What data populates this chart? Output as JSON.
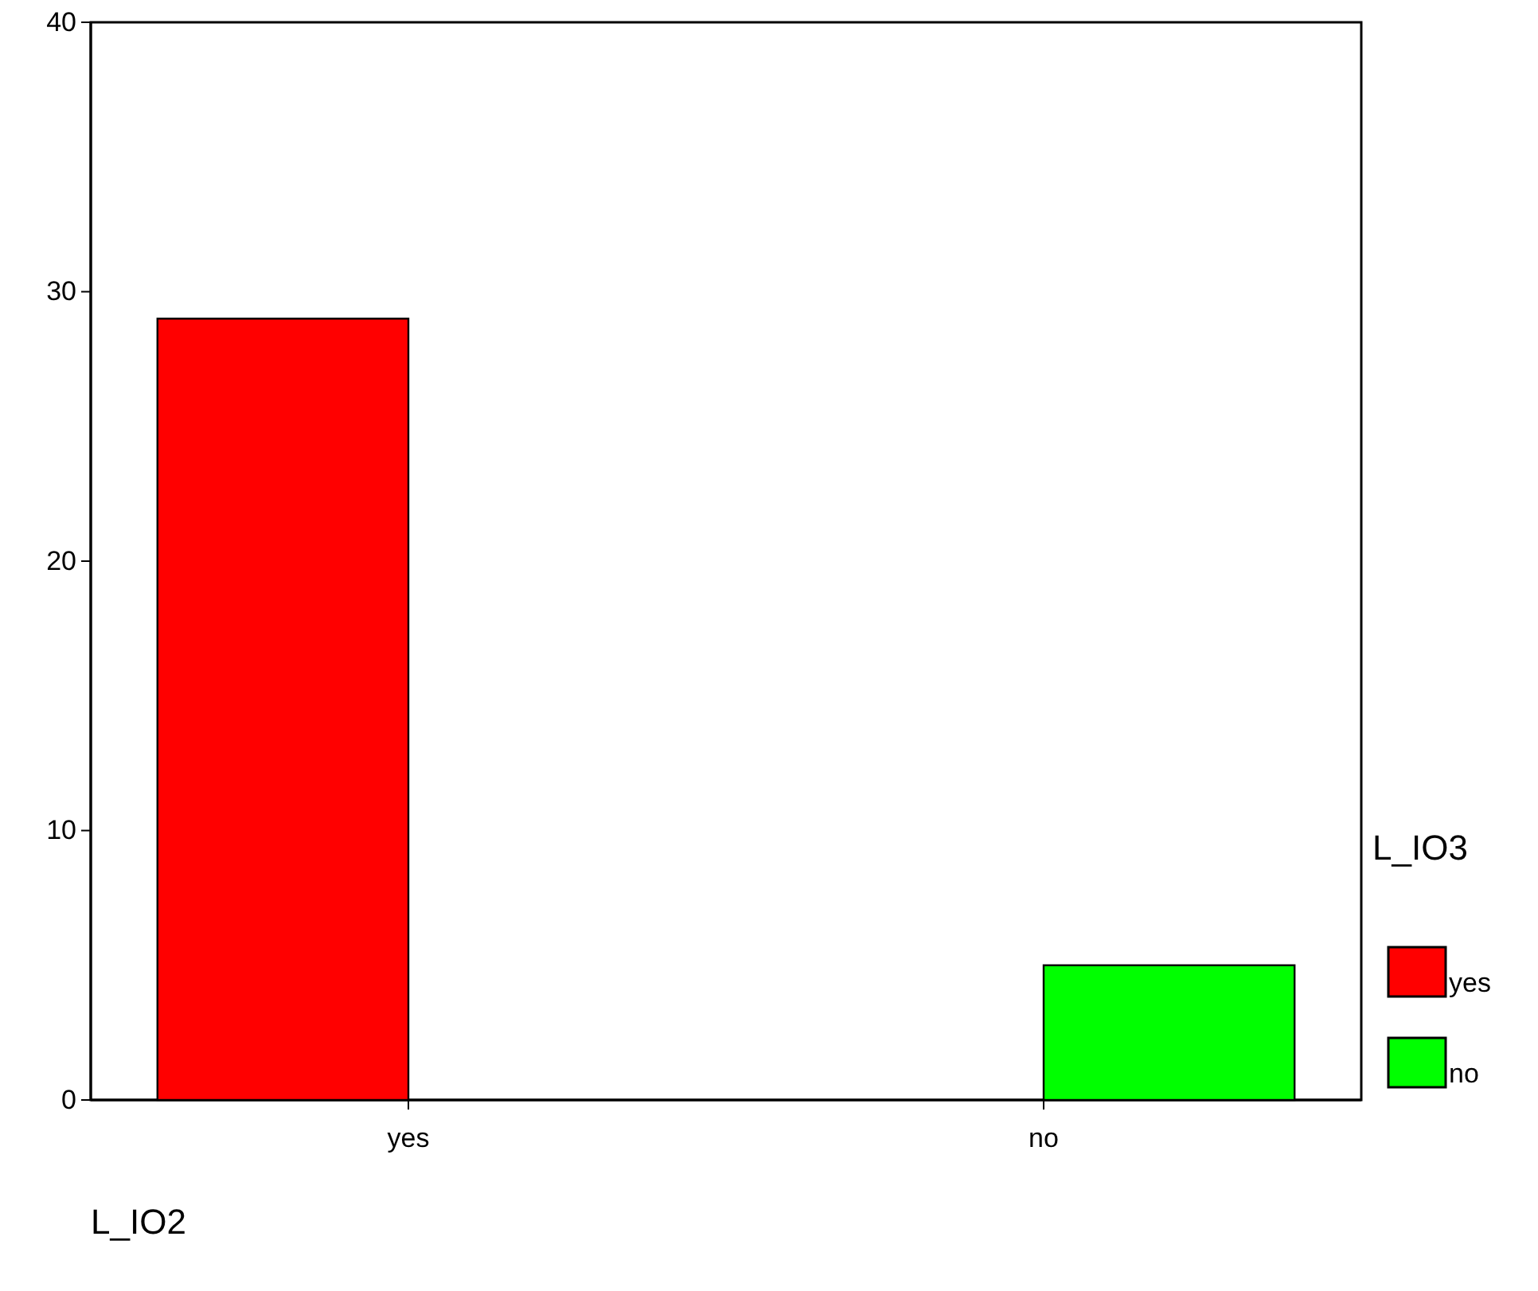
{
  "chart_data": {
    "type": "bar",
    "xlabel": "L_IO2",
    "legend_title": "L_IO3",
    "categories": [
      "yes",
      "no"
    ],
    "series": [
      {
        "name": "yes",
        "color": "#ff0000",
        "values": [
          29,
          null
        ]
      },
      {
        "name": "no",
        "color": "#00ff00",
        "values": [
          null,
          5
        ]
      }
    ],
    "ylim": [
      0,
      40
    ],
    "yticks": [
      0,
      10,
      20,
      30,
      40
    ],
    "legend": "right"
  }
}
